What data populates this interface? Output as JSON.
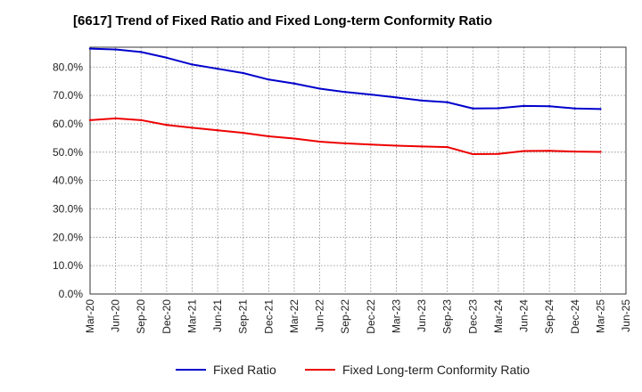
{
  "chart_data": {
    "type": "line",
    "title": "[6617]  Trend of Fixed Ratio and Fixed Long-term Conformity Ratio",
    "xlabel": "",
    "ylabel": "",
    "ylim": [
      0,
      87
    ],
    "y_ticks": [
      "0.0%",
      "10.0%",
      "20.0%",
      "30.0%",
      "40.0%",
      "50.0%",
      "60.0%",
      "70.0%",
      "80.0%"
    ],
    "x_ticks": [
      "Mar-20",
      "Jun-20",
      "Sep-20",
      "Dec-20",
      "Mar-21",
      "Jun-21",
      "Sep-21",
      "Dec-21",
      "Mar-22",
      "Jun-22",
      "Sep-22",
      "Dec-22",
      "Mar-23",
      "Jun-23",
      "Sep-23",
      "Dec-23",
      "Mar-24",
      "Jun-24",
      "Sep-24",
      "Dec-24",
      "Mar-25",
      "Jun-25"
    ],
    "x": [
      "Mar-20",
      "Jun-20",
      "Sep-20",
      "Dec-20",
      "Mar-21",
      "Jun-21",
      "Sep-21",
      "Dec-21",
      "Mar-22",
      "Jun-22",
      "Sep-22",
      "Dec-22",
      "Mar-23",
      "Jun-23",
      "Sep-23",
      "Dec-23",
      "Mar-24",
      "Jun-24",
      "Sep-24",
      "Dec-24",
      "Mar-25"
    ],
    "grid": true,
    "legend_position": "bottom",
    "series": [
      {
        "name": "Fixed Ratio",
        "color": "#0000cc",
        "values": [
          86.5,
          86.2,
          85.3,
          83.3,
          80.9,
          79.4,
          77.9,
          75.6,
          74.2,
          72.4,
          71.2,
          70.3,
          69.3,
          68.2,
          67.6,
          65.4,
          65.5,
          66.3,
          66.2,
          65.4,
          65.2
        ]
      },
      {
        "name": "Fixed Long-term Conformity Ratio",
        "color": "#ee0000",
        "values": [
          61.3,
          61.9,
          61.3,
          59.6,
          58.6,
          57.7,
          56.8,
          55.6,
          54.8,
          53.7,
          53.1,
          52.7,
          52.3,
          52.0,
          51.8,
          49.3,
          49.4,
          50.4,
          50.5,
          50.2,
          50.1
        ]
      }
    ]
  }
}
